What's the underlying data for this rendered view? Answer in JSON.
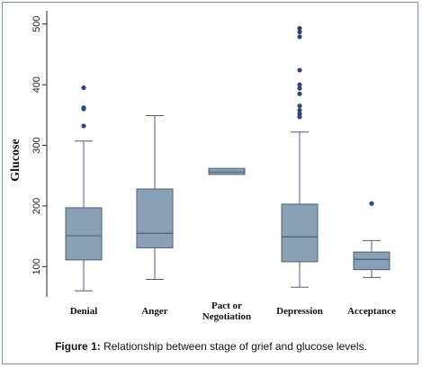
{
  "caption": {
    "label": "Figure 1:",
    "text": "Relationship between stage of grief and glucose levels."
  },
  "colors": {
    "box_fill": "#8aa0b7",
    "box_stroke": "#4d5f74",
    "outlier": "#2f4a6e",
    "frame_border": "#7f8fa3"
  },
  "chart_data": {
    "type": "box",
    "ylabel": "Glucose",
    "xlabel": "",
    "ylim": [
      50,
      510
    ],
    "yticks": [
      100,
      200,
      300,
      400,
      500
    ],
    "grid": false,
    "categories": [
      {
        "label": [
          "Denial"
        ],
        "min": 60,
        "q1": 111,
        "median": 151,
        "q3": 197,
        "max": 307,
        "outliers": [
          332,
          360,
          362,
          395
        ]
      },
      {
        "label": [
          "Anger"
        ],
        "min": 79,
        "q1": 131,
        "median": 155,
        "q3": 228,
        "max": 349,
        "outliers": []
      },
      {
        "label": [
          "Pact or",
          "Negotiation"
        ],
        "min": 252,
        "q1": 252,
        "median": 256,
        "q3": 262,
        "max": 262,
        "outliers": []
      },
      {
        "label": [
          "Depression"
        ],
        "min": 66,
        "q1": 108,
        "median": 149,
        "q3": 203,
        "max": 322,
        "outliers": [
          347,
          352,
          358,
          365,
          385,
          394,
          400,
          424,
          479,
          487,
          493
        ]
      },
      {
        "label": [
          "Acceptance"
        ],
        "min": 82,
        "q1": 95,
        "median": 112,
        "q3": 124,
        "max": 143,
        "outliers": [
          204
        ]
      }
    ]
  }
}
